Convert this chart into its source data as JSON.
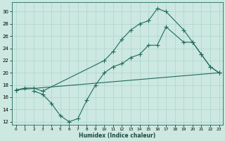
{
  "xlabel": "Humidex (Indice chaleur)",
  "bg_color": "#cce8e0",
  "line_color": "#1f6b5e",
  "grid_color": "#aad4cc",
  "xlim": [
    -0.5,
    23.4
  ],
  "ylim": [
    11.5,
    31.5
  ],
  "xticks": [
    0,
    1,
    2,
    3,
    4,
    5,
    6,
    7,
    8,
    9,
    10,
    11,
    12,
    13,
    14,
    15,
    16,
    17,
    18,
    19,
    20,
    21,
    22,
    23
  ],
  "yticks": [
    12,
    14,
    16,
    18,
    20,
    22,
    24,
    26,
    28,
    30
  ],
  "line1_x": [
    0,
    1,
    2,
    3,
    10,
    11,
    12,
    13,
    14,
    15,
    16,
    17,
    19,
    20,
    21,
    22,
    23
  ],
  "line1_y": [
    17.2,
    17.5,
    17.5,
    17.0,
    22.0,
    23.5,
    25.5,
    27.0,
    28.0,
    28.5,
    30.5,
    30.0,
    27.0,
    25.0,
    23.0,
    21.0,
    20.0
  ],
  "line2_x": [
    0,
    23
  ],
  "line2_y": [
    17.2,
    20.0
  ],
  "line3_x": [
    2,
    3,
    4,
    5,
    6,
    7,
    8,
    9,
    10,
    11,
    12,
    13,
    14,
    15,
    16,
    17,
    19,
    20,
    21,
    22,
    23
  ],
  "line3_y": [
    17.0,
    16.5,
    15.0,
    13.0,
    12.0,
    12.5,
    15.5,
    18.0,
    20.0,
    21.0,
    21.5,
    22.5,
    23.0,
    24.5,
    24.5,
    27.5,
    25.0,
    25.0,
    23.0,
    21.0,
    20.0
  ]
}
